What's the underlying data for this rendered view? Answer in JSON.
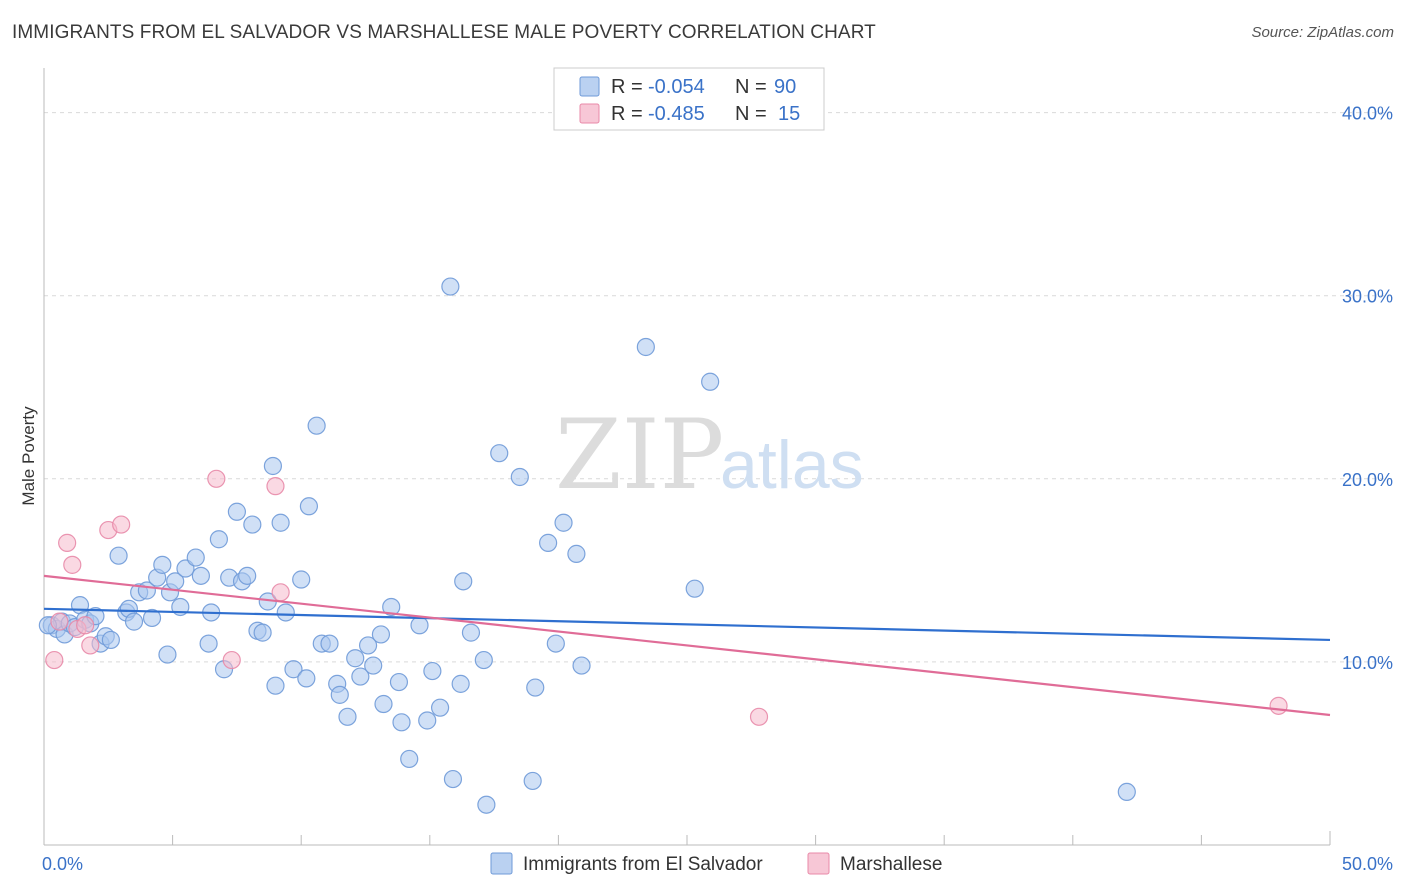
{
  "header": {
    "title": "IMMIGRANTS FROM EL SALVADOR VS MARSHALLESE MALE POVERTY CORRELATION CHART",
    "source": "Source: ZipAtlas.com"
  },
  "watermark": {
    "zip": "ZIP",
    "atlas": "atlas"
  },
  "legend_box": {
    "rows": [
      {
        "r_label": "R =",
        "r_value": "-0.054",
        "n_label": "N =",
        "n_value": "90",
        "color": "#a9c6ee",
        "stroke": "#6f9ad8"
      },
      {
        "r_label": "R =",
        "r_value": "-0.485",
        "n_label": "N =",
        "n_value": "15",
        "color": "#f5b9cc",
        "stroke": "#e889a8"
      }
    ]
  },
  "colors": {
    "blue_fill": "#a9c6ee",
    "blue_stroke": "#6f9ad8",
    "blue_line": "#2f6fcf",
    "pink_fill": "#f5b9cc",
    "pink_stroke": "#e889a8",
    "pink_line": "#e06c97",
    "grid": "#d9d9d9",
    "tick_text": "#3a72c8"
  },
  "chart_data": {
    "type": "scatter",
    "ylabel": "Male Poverty",
    "xlim": [
      0,
      50
    ],
    "ylim": [
      0,
      42
    ],
    "x_tick_labels": [
      {
        "value": 0,
        "label": "0.0%"
      },
      {
        "value": 50,
        "label": "50.0%"
      }
    ],
    "y_tick_labels": [
      {
        "value": 10,
        "label": "10.0%"
      },
      {
        "value": 20,
        "label": "20.0%"
      },
      {
        "value": 30,
        "label": "30.0%"
      },
      {
        "value": 40,
        "label": "40.0%"
      }
    ],
    "grid": true,
    "legend_position": "top-center",
    "series": [
      {
        "name": "Immigrants from El Salvador",
        "color": "#a9c6ee",
        "trend": {
          "x": [
            0,
            50
          ],
          "y": [
            12.9,
            11.2
          ]
        },
        "points": [
          [
            0.3,
            12.0
          ],
          [
            0.5,
            11.8
          ],
          [
            0.7,
            12.2
          ],
          [
            0.8,
            11.5
          ],
          [
            1.0,
            12.1
          ],
          [
            1.2,
            11.9
          ],
          [
            1.4,
            13.1
          ],
          [
            1.6,
            12.3
          ],
          [
            1.8,
            12.1
          ],
          [
            2.0,
            12.5
          ],
          [
            2.2,
            11.0
          ],
          [
            2.4,
            11.4
          ],
          [
            2.6,
            11.2
          ],
          [
            2.9,
            15.8
          ],
          [
            3.2,
            12.7
          ],
          [
            3.3,
            12.9
          ],
          [
            3.5,
            12.2
          ],
          [
            3.7,
            13.8
          ],
          [
            4.0,
            13.9
          ],
          [
            4.2,
            12.4
          ],
          [
            4.4,
            14.6
          ],
          [
            4.6,
            15.3
          ],
          [
            4.8,
            10.4
          ],
          [
            4.9,
            13.8
          ],
          [
            5.1,
            14.4
          ],
          [
            5.3,
            13.0
          ],
          [
            5.5,
            15.1
          ],
          [
            5.9,
            15.7
          ],
          [
            6.1,
            14.7
          ],
          [
            6.4,
            11.0
          ],
          [
            6.5,
            12.7
          ],
          [
            6.8,
            16.7
          ],
          [
            7.0,
            9.6
          ],
          [
            7.2,
            14.6
          ],
          [
            7.5,
            18.2
          ],
          [
            7.7,
            14.4
          ],
          [
            7.9,
            14.7
          ],
          [
            8.1,
            17.5
          ],
          [
            8.3,
            11.7
          ],
          [
            8.5,
            11.6
          ],
          [
            8.7,
            13.3
          ],
          [
            8.9,
            20.7
          ],
          [
            9.0,
            8.7
          ],
          [
            9.2,
            17.6
          ],
          [
            9.4,
            12.7
          ],
          [
            9.7,
            9.6
          ],
          [
            10.0,
            14.5
          ],
          [
            10.2,
            9.1
          ],
          [
            10.3,
            18.5
          ],
          [
            10.6,
            22.9
          ],
          [
            10.8,
            11.0
          ],
          [
            11.1,
            11.0
          ],
          [
            11.4,
            8.8
          ],
          [
            11.5,
            8.2
          ],
          [
            11.8,
            7.0
          ],
          [
            12.1,
            10.2
          ],
          [
            12.3,
            9.2
          ],
          [
            12.6,
            10.9
          ],
          [
            12.8,
            9.8
          ],
          [
            13.1,
            11.5
          ],
          [
            13.2,
            7.7
          ],
          [
            13.5,
            13.0
          ],
          [
            13.8,
            8.9
          ],
          [
            13.9,
            6.7
          ],
          [
            14.2,
            4.7
          ],
          [
            14.6,
            12.0
          ],
          [
            14.9,
            6.8
          ],
          [
            15.1,
            9.5
          ],
          [
            15.4,
            7.5
          ],
          [
            15.8,
            30.5
          ],
          [
            15.9,
            3.6
          ],
          [
            16.3,
            14.4
          ],
          [
            16.2,
            8.8
          ],
          [
            16.6,
            11.6
          ],
          [
            17.1,
            10.1
          ],
          [
            17.2,
            2.2
          ],
          [
            17.7,
            21.4
          ],
          [
            18.5,
            20.1
          ],
          [
            19.0,
            3.5
          ],
          [
            19.1,
            8.6
          ],
          [
            19.6,
            16.5
          ],
          [
            19.9,
            11.0
          ],
          [
            20.2,
            17.6
          ],
          [
            20.7,
            15.9
          ],
          [
            20.9,
            9.8
          ],
          [
            23.4,
            27.2
          ],
          [
            25.3,
            14.0
          ],
          [
            25.9,
            25.3
          ],
          [
            42.1,
            2.9
          ],
          [
            0.15,
            12.0
          ]
        ]
      },
      {
        "name": "Marshallese",
        "color": "#f5b9cc",
        "trend": {
          "x": [
            0,
            50
          ],
          "y": [
            14.7,
            7.1
          ]
        },
        "points": [
          [
            0.4,
            10.1
          ],
          [
            0.9,
            16.5
          ],
          [
            1.1,
            15.3
          ],
          [
            1.3,
            11.8
          ],
          [
            1.8,
            10.9
          ],
          [
            2.5,
            17.2
          ],
          [
            3.0,
            17.5
          ],
          [
            6.7,
            20.0
          ],
          [
            7.3,
            10.1
          ],
          [
            9.0,
            19.6
          ],
          [
            9.2,
            13.8
          ],
          [
            1.6,
            12.0
          ],
          [
            0.6,
            12.2
          ],
          [
            27.8,
            7.0
          ],
          [
            48.0,
            7.6
          ]
        ]
      }
    ]
  }
}
